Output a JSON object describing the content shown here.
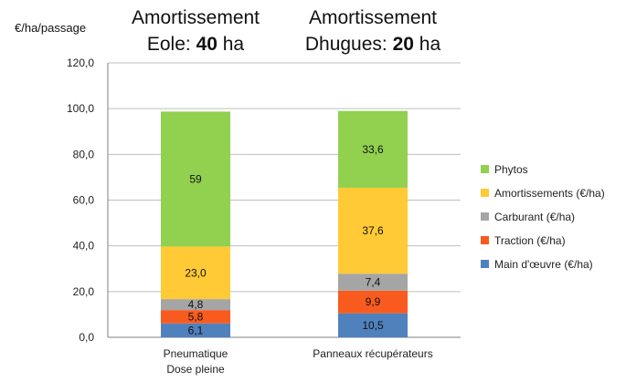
{
  "chart_data": {
    "type": "bar",
    "stacked": true,
    "ylabel": "€/ha/passage",
    "ylim": [
      0,
      120
    ],
    "yticks": [
      "0,0",
      "20,0",
      "40,0",
      "60,0",
      "80,0",
      "100,0",
      "120,0"
    ],
    "grid": true,
    "legend_position": "right",
    "categories": [
      {
        "lines": [
          "Pneumatique",
          "Dose pleine"
        ],
        "header_line1": "Amortissement",
        "header_prefix": "Eole: ",
        "header_bold": "40",
        "header_suffix": " ha"
      },
      {
        "lines": [
          "Panneaux récupérateurs"
        ],
        "header_line1": "Amortissement",
        "header_prefix": "Dhugues: ",
        "header_bold": "20",
        "header_suffix": " ha"
      }
    ],
    "series": [
      {
        "name": "Main d'œuvre (€/ha)",
        "color": "#4F81BD",
        "values": [
          6.1,
          10.5
        ],
        "labels": [
          "6,1",
          "10,5"
        ]
      },
      {
        "name": "Traction (€/ha)",
        "color": "#F95B1E",
        "values": [
          5.8,
          9.9
        ],
        "labels": [
          "5,8",
          "9,9"
        ]
      },
      {
        "name": "Carburant (€/ha)",
        "color": "#A5A5A5",
        "values": [
          4.8,
          7.4
        ],
        "labels": [
          "4,8",
          "7,4"
        ]
      },
      {
        "name": "Amortissements (€/ha)",
        "color": "#FFCA36",
        "values": [
          23.0,
          37.6
        ],
        "labels": [
          "23,0",
          "37,6"
        ]
      },
      {
        "name": "Phytos",
        "color": "#92D050",
        "values": [
          59,
          33.6
        ],
        "labels": [
          "59",
          "33,6"
        ]
      }
    ]
  }
}
